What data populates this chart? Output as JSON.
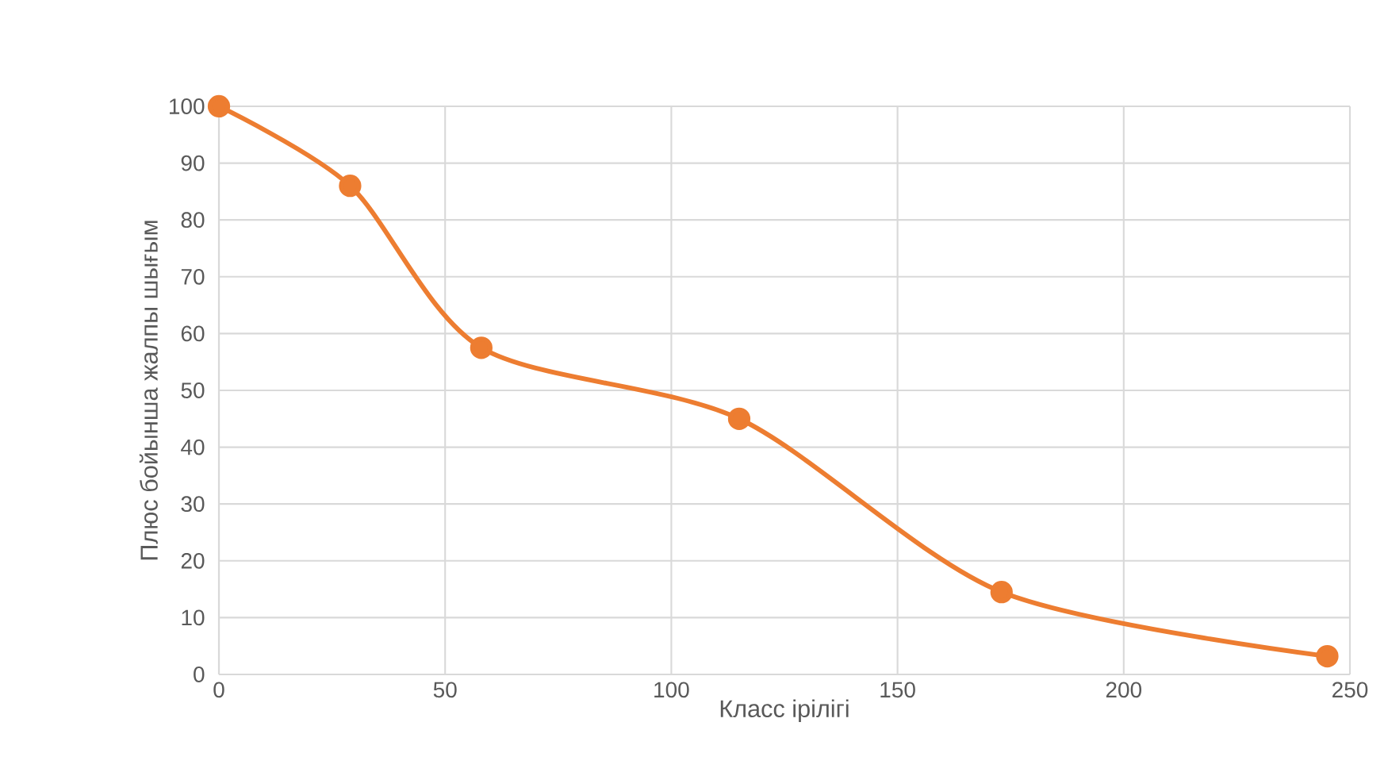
{
  "chart_data": {
    "type": "line",
    "xlabel": "Класс ірілігі",
    "ylabel": "Плюс бойынша жалпы шығым",
    "x": [
      0,
      29,
      58,
      115,
      173,
      245
    ],
    "series": [
      {
        "color": "#ed7d31",
        "values": [
          100,
          86,
          57.5,
          45,
          14.5,
          3.2
        ]
      }
    ],
    "xlim": [
      0,
      250
    ],
    "xticks": [
      0,
      50,
      100,
      150,
      200,
      250
    ],
    "ylim": [
      0,
      100
    ],
    "yticks": [
      0,
      10,
      20,
      30,
      40,
      50,
      60,
      70,
      80,
      90,
      100
    ],
    "grid": true,
    "marker": "circle",
    "line_style": "solid"
  }
}
